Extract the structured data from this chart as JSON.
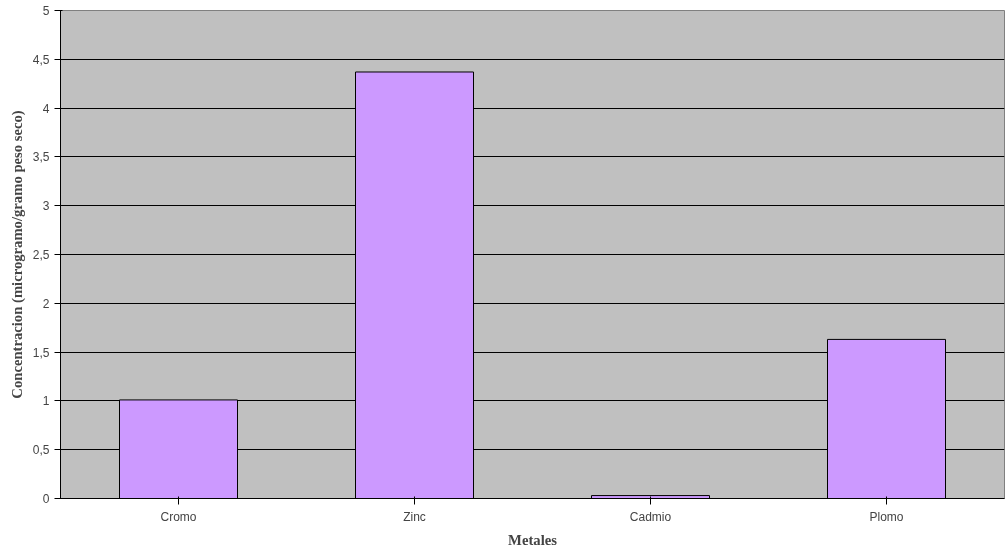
{
  "chart_data": {
    "type": "bar",
    "xlabel": "Metales",
    "ylabel": "Concentracion (microgramo/gramo peso seco)",
    "categories": [
      "Cromo",
      "Zinc",
      "Cadmio",
      "Plomo"
    ],
    "values": [
      1.01,
      4.37,
      0.03,
      1.63
    ],
    "color": "#cc99ff",
    "ylim": [
      0,
      5
    ],
    "yticks": [
      0,
      {
        "value": 0.5,
        "label": "0,5"
      },
      1,
      {
        "value": 1.5,
        "label": "1,5"
      },
      2,
      {
        "value": 2.5,
        "label": "2,5"
      },
      3,
      {
        "value": 3.5,
        "label": "3,5"
      },
      4,
      {
        "value": 4.5,
        "label": "4,5"
      },
      5
    ],
    "grid": "y"
  }
}
